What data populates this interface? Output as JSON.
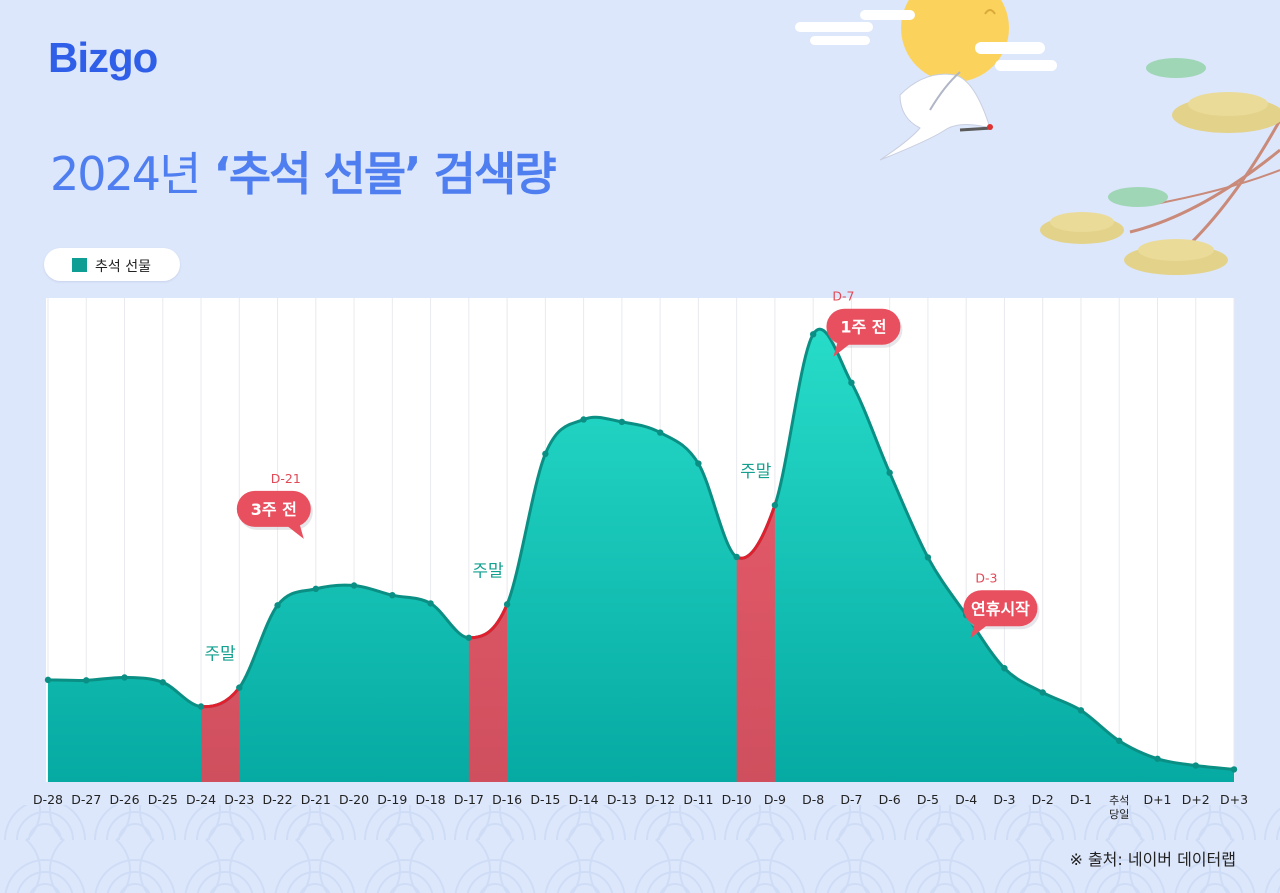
{
  "brand": {
    "logo_text": "Bizgo"
  },
  "title": {
    "year": "2024년",
    "quote_term": "‘추석 선물’",
    "suffix": "검색량"
  },
  "legend": {
    "label": "추석 선물",
    "color": "#0f9e94"
  },
  "colors": {
    "background": "#dde7fb",
    "title_blue": "#4f7ef0",
    "area_teal": "#18c2b6",
    "line": "#0b8f84",
    "weekend_red": "#e0566a",
    "callout_red": "#e9505f"
  },
  "chart_data": {
    "type": "area",
    "title": "2024년 ‘추석 선물’ 검색량",
    "xlabel": "",
    "ylabel": "",
    "ylim": [
      0,
      100
    ],
    "grid": "vertical",
    "legend_position": "top-left",
    "categories": [
      "D-28",
      "D-27",
      "D-26",
      "D-25",
      "D-24",
      "D-23",
      "D-22",
      "D-21",
      "D-20",
      "D-19",
      "D-18",
      "D-17",
      "D-16",
      "D-15",
      "D-14",
      "D-13",
      "D-12",
      "D-11",
      "D-10",
      "D-9",
      "D-8",
      "D-7",
      "D-6",
      "D-5",
      "D-4",
      "D-3",
      "D-2",
      "D-1",
      "추석 당일",
      "D+1",
      "D+2",
      "D+3"
    ],
    "series": [
      {
        "name": "추석 선물",
        "values": [
          21.1,
          21.0,
          21.6,
          20.6,
          15.6,
          19.5,
          36.5,
          39.9,
          40.6,
          38.6,
          36.9,
          29.8,
          36.7,
          67.8,
          74.9,
          74.4,
          72.2,
          65.8,
          46.5,
          57.2,
          92.5,
          82.5,
          63.9,
          46.4,
          34.5,
          23.5,
          18.5,
          14.8,
          8.5,
          4.8,
          3.4,
          2.6
        ]
      }
    ],
    "weekends": [
      [
        "D-24",
        "D-23"
      ],
      [
        "D-17",
        "D-16"
      ],
      [
        "D-10",
        "D-9"
      ]
    ],
    "weekend_label": "주말",
    "annotations": [
      {
        "at": "D-21",
        "day": "D-21",
        "text": "3주 전"
      },
      {
        "at": "D-7",
        "day": "D-7",
        "text": "1주 전"
      },
      {
        "at": "D-3",
        "day": "D-3",
        "text": "연휴시작"
      }
    ]
  },
  "source": "※ 출처: 네이버 데이터랩"
}
